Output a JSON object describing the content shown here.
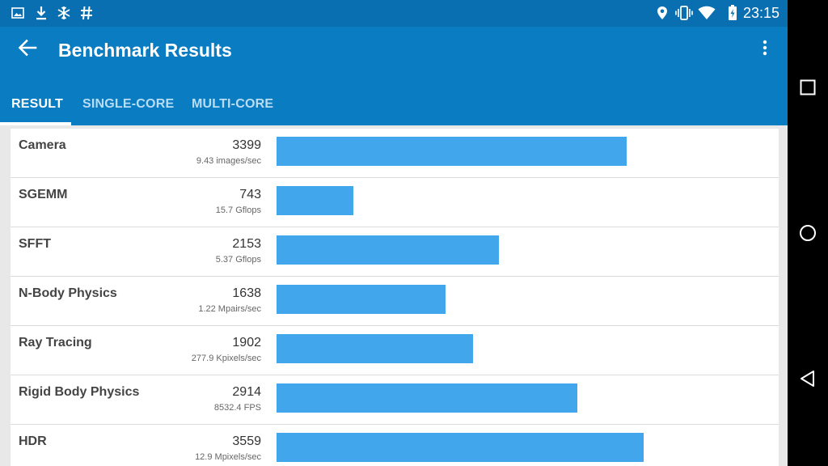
{
  "status_bar": {
    "left_icons": [
      "image-icon",
      "download-icon",
      "snowflake-icon",
      "hash-icon"
    ],
    "right_icons": [
      "location-icon",
      "vibrate-icon",
      "wifi-icon",
      "battery-charging-icon"
    ],
    "time": "23:15"
  },
  "app_bar": {
    "title": "Benchmark Results"
  },
  "tabs": [
    {
      "label": "RESULT",
      "active": true
    },
    {
      "label": "SINGLE-CORE",
      "active": false
    },
    {
      "label": "MULTI-CORE",
      "active": false
    }
  ],
  "results": {
    "max_score": 4000,
    "rows": [
      {
        "name": "Camera",
        "score": "3399",
        "detail": "9.43 images/sec"
      },
      {
        "name": "SGEMM",
        "score": "743",
        "detail": "15.7 Gflops"
      },
      {
        "name": "SFFT",
        "score": "2153",
        "detail": "5.37 Gflops"
      },
      {
        "name": "N-Body Physics",
        "score": "1638",
        "detail": "1.22 Mpairs/sec"
      },
      {
        "name": "Ray Tracing",
        "score": "1902",
        "detail": "277.9 Kpixels/sec"
      },
      {
        "name": "Rigid Body Physics",
        "score": "2914",
        "detail": "8532.4 FPS"
      },
      {
        "name": "HDR",
        "score": "3559",
        "detail": "12.9 Mpixels/sec"
      }
    ]
  },
  "colors": {
    "app_bar": "#0a7cc2",
    "status_bar": "#0a6fb0",
    "bar": "#41a6eb",
    "background": "#e8e8e8"
  },
  "nav_bar": {
    "buttons": [
      "recents-button",
      "home-button",
      "back-button"
    ]
  }
}
